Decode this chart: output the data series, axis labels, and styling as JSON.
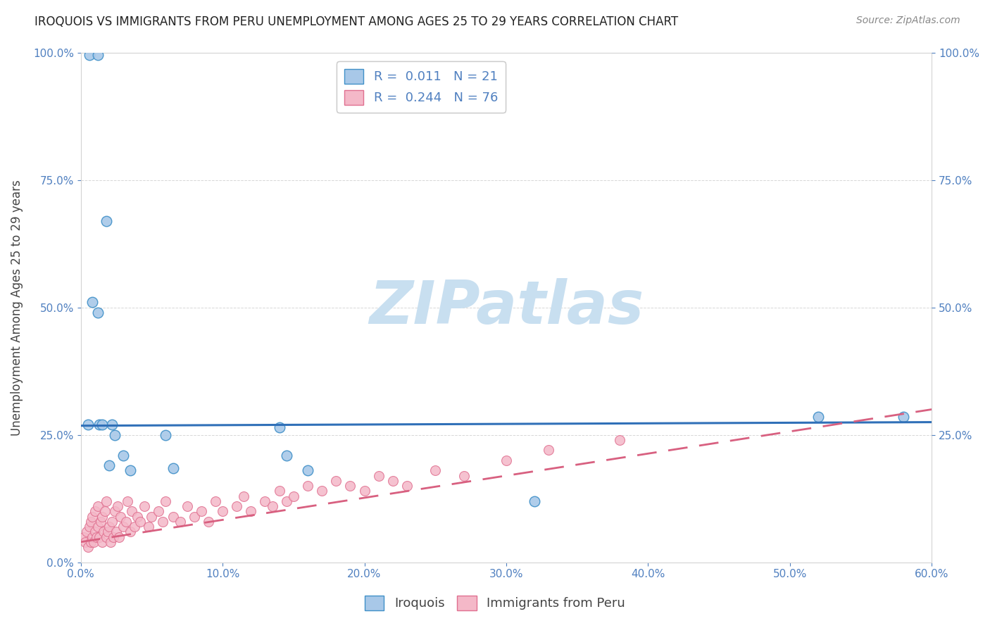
{
  "title": "IROQUOIS VS IMMIGRANTS FROM PERU UNEMPLOYMENT AMONG AGES 25 TO 29 YEARS CORRELATION CHART",
  "source": "Source: ZipAtlas.com",
  "ylabel": "Unemployment Among Ages 25 to 29 years",
  "xlim": [
    0.0,
    0.6
  ],
  "ylim": [
    0.0,
    1.0
  ],
  "xticks": [
    0.0,
    0.1,
    0.2,
    0.3,
    0.4,
    0.5,
    0.6
  ],
  "xticklabels": [
    "0.0%",
    "10.0%",
    "20.0%",
    "30.0%",
    "40.0%",
    "50.0%",
    "60.0%"
  ],
  "yticks_left": [
    0.0,
    0.25,
    0.5,
    0.75,
    1.0
  ],
  "yticklabels_left": [
    "0.0%",
    "25.0%",
    "50.0%",
    "75.0%",
    "100.0%"
  ],
  "yticks_right": [
    0.25,
    0.5,
    0.75,
    1.0
  ],
  "yticklabels_right": [
    "25.0%",
    "50.0%",
    "75.0%",
    "100.0%"
  ],
  "blue_fill": "#a8c8e8",
  "blue_edge": "#4090c8",
  "pink_fill": "#f4b8c8",
  "pink_edge": "#e07090",
  "blue_line_color": "#3070b8",
  "pink_line_color": "#d86080",
  "tick_color": "#5080c0",
  "watermark_color": "#c8dff0",
  "legend_r1": "R =  0.011",
  "legend_n1": "N = 21",
  "legend_r2": "R =  0.244",
  "legend_n2": "N = 76",
  "legend_label1": "Iroquois",
  "legend_label2": "Immigrants from Peru",
  "iroquois_x": [
    0.006,
    0.012,
    0.013,
    0.008,
    0.018,
    0.022,
    0.024,
    0.02,
    0.005,
    0.03,
    0.035,
    0.06,
    0.065,
    0.14,
    0.145,
    0.16,
    0.32,
    0.52,
    0.58,
    0.012,
    0.015
  ],
  "iroquois_y": [
    0.995,
    0.995,
    0.27,
    0.51,
    0.67,
    0.27,
    0.25,
    0.19,
    0.27,
    0.21,
    0.18,
    0.25,
    0.185,
    0.265,
    0.21,
    0.18,
    0.12,
    0.285,
    0.285,
    0.49,
    0.27
  ],
  "peru_x": [
    0.002,
    0.003,
    0.004,
    0.005,
    0.006,
    0.007,
    0.007,
    0.008,
    0.008,
    0.009,
    0.01,
    0.01,
    0.011,
    0.012,
    0.012,
    0.013,
    0.014,
    0.015,
    0.015,
    0.016,
    0.017,
    0.018,
    0.018,
    0.019,
    0.02,
    0.021,
    0.022,
    0.023,
    0.024,
    0.025,
    0.026,
    0.027,
    0.028,
    0.03,
    0.032,
    0.033,
    0.035,
    0.036,
    0.038,
    0.04,
    0.042,
    0.045,
    0.048,
    0.05,
    0.055,
    0.058,
    0.06,
    0.065,
    0.07,
    0.075,
    0.08,
    0.085,
    0.09,
    0.095,
    0.1,
    0.11,
    0.115,
    0.12,
    0.13,
    0.135,
    0.14,
    0.145,
    0.15,
    0.16,
    0.17,
    0.18,
    0.19,
    0.2,
    0.21,
    0.22,
    0.23,
    0.25,
    0.27,
    0.3,
    0.33,
    0.38
  ],
  "peru_y": [
    0.05,
    0.04,
    0.06,
    0.03,
    0.07,
    0.04,
    0.08,
    0.05,
    0.09,
    0.04,
    0.06,
    0.1,
    0.05,
    0.07,
    0.11,
    0.05,
    0.08,
    0.04,
    0.09,
    0.06,
    0.1,
    0.05,
    0.12,
    0.06,
    0.07,
    0.04,
    0.08,
    0.05,
    0.1,
    0.06,
    0.11,
    0.05,
    0.09,
    0.07,
    0.08,
    0.12,
    0.06,
    0.1,
    0.07,
    0.09,
    0.08,
    0.11,
    0.07,
    0.09,
    0.1,
    0.08,
    0.12,
    0.09,
    0.08,
    0.11,
    0.09,
    0.1,
    0.08,
    0.12,
    0.1,
    0.11,
    0.13,
    0.1,
    0.12,
    0.11,
    0.14,
    0.12,
    0.13,
    0.15,
    0.14,
    0.16,
    0.15,
    0.14,
    0.17,
    0.16,
    0.15,
    0.18,
    0.17,
    0.2,
    0.22,
    0.24
  ],
  "blue_trendline_y_start": 0.268,
  "blue_trendline_y_end": 0.275,
  "pink_trendline_y_start": 0.04,
  "pink_trendline_y_end": 0.3
}
